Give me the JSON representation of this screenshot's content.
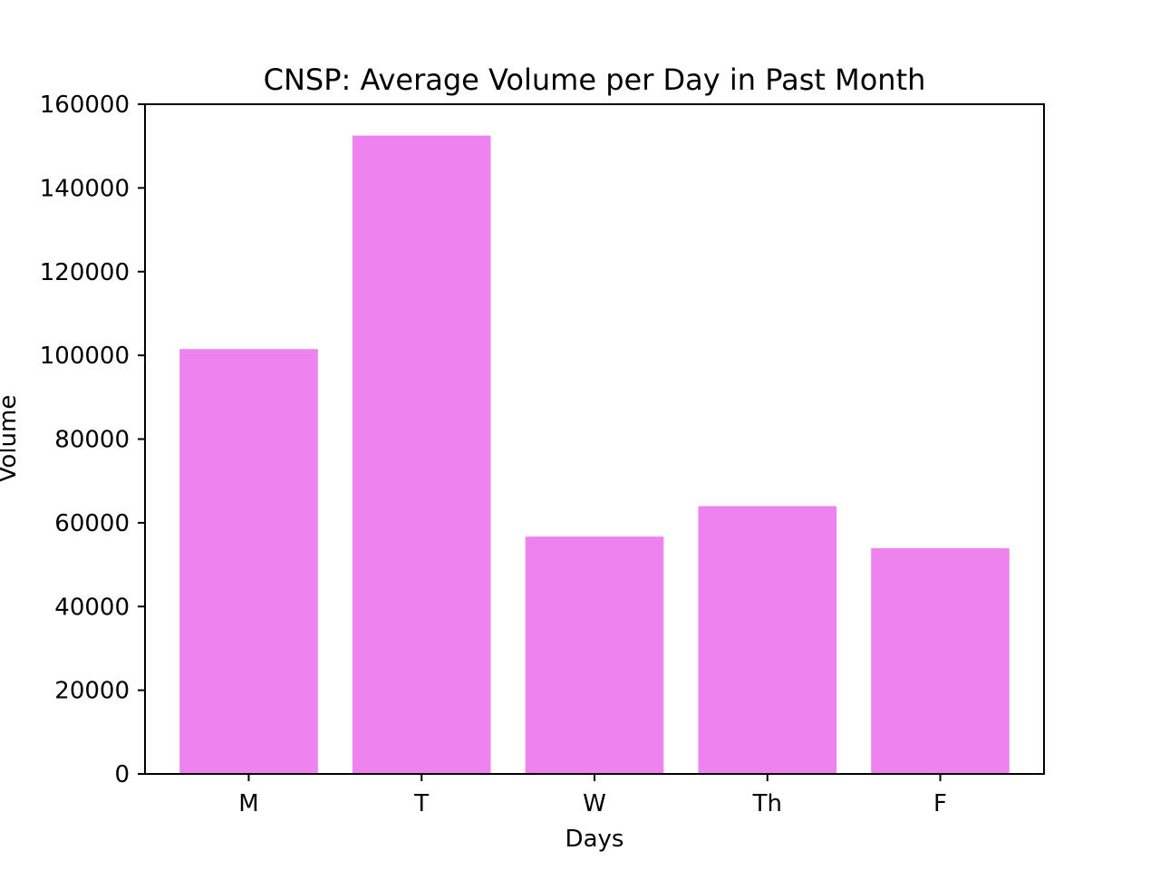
{
  "chart_data": {
    "type": "bar",
    "title": "CNSP: Average Volume per Day in Past Month",
    "xlabel": "Days",
    "ylabel": "Volume",
    "categories": [
      "M",
      "T",
      "W",
      "Th",
      "F"
    ],
    "values": [
      101500,
      152500,
      56700,
      64000,
      53900
    ],
    "ylim": [
      0,
      160000
    ],
    "yticks": [
      0,
      20000,
      40000,
      60000,
      80000,
      100000,
      120000,
      140000,
      160000
    ],
    "ytick_labels": [
      "0",
      "20000",
      "40000",
      "60000",
      "80000",
      "100000",
      "120000",
      "140000",
      "160000"
    ],
    "bar_color": "#ee82ee",
    "grid": false,
    "legend": "none"
  }
}
